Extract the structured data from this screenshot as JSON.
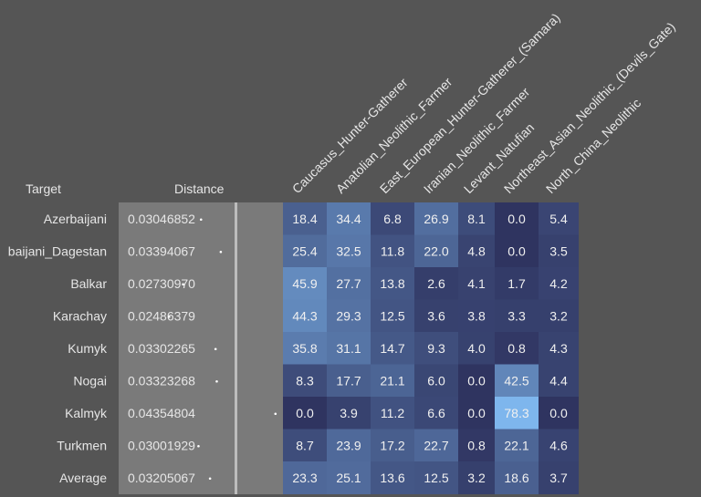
{
  "headers": {
    "target": "Target",
    "distance": "Distance"
  },
  "chart_data": {
    "type": "heatmap",
    "columns": [
      "Caucasus_Hunter-Gatherer",
      "Anatolian_Neolithic_Farmer",
      "East_European_Hunter-Gatherer_(Samara)",
      "Iranian_Neolithic_Farmer",
      "Levant_Natufian",
      "Northeast_Asian_Neolithic_(Devils_Gate)",
      "North_China_Neolithic"
    ],
    "rows": [
      {
        "target": "Azerbaijani",
        "label": "Azerbaijani",
        "distance": "0.03046852",
        "values": [
          18.4,
          34.4,
          6.8,
          26.9,
          8.1,
          0.0,
          5.4
        ]
      },
      {
        "target": "Azerbaijani_Dagestan",
        "label": "baijani_Dagestan",
        "distance": "0.03394067",
        "values": [
          25.4,
          32.5,
          11.8,
          22.0,
          4.8,
          0.0,
          3.5
        ]
      },
      {
        "target": "Balkar",
        "label": "Balkar",
        "distance": "0.02730970",
        "values": [
          45.9,
          27.7,
          13.8,
          2.6,
          4.1,
          1.7,
          4.2
        ]
      },
      {
        "target": "Karachay",
        "label": "Karachay",
        "distance": "0.02486379",
        "values": [
          44.3,
          29.3,
          12.5,
          3.6,
          3.8,
          3.3,
          3.2
        ]
      },
      {
        "target": "Kumyk",
        "label": "Kumyk",
        "distance": "0.03302265",
        "values": [
          35.8,
          31.1,
          14.7,
          9.3,
          4.0,
          0.8,
          4.3
        ]
      },
      {
        "target": "Nogai",
        "label": "Nogai",
        "distance": "0.03323268",
        "values": [
          8.3,
          17.7,
          21.1,
          6.0,
          0.0,
          42.5,
          4.4
        ]
      },
      {
        "target": "Kalmyk",
        "label": "Kalmyk",
        "distance": "0.04354804",
        "values": [
          0.0,
          3.9,
          11.2,
          6.6,
          0.0,
          78.3,
          0.0
        ]
      },
      {
        "target": "Turkmen",
        "label": "Turkmen",
        "distance": "0.03001929",
        "values": [
          8.7,
          23.9,
          17.2,
          22.7,
          0.8,
          22.1,
          4.6
        ]
      },
      {
        "target": "Average",
        "label": "Average",
        "distance": "0.03205067",
        "values": [
          23.3,
          25.1,
          13.6,
          12.5,
          3.2,
          18.6,
          3.7
        ]
      }
    ],
    "value_range": [
      0,
      80
    ],
    "colors": {
      "low": "#2f3460",
      "high": "#7fb8ef",
      "distance_panel": "#7a7a7a",
      "distance_divider": "#bdbdbd",
      "dot": "#ffffff"
    }
  }
}
